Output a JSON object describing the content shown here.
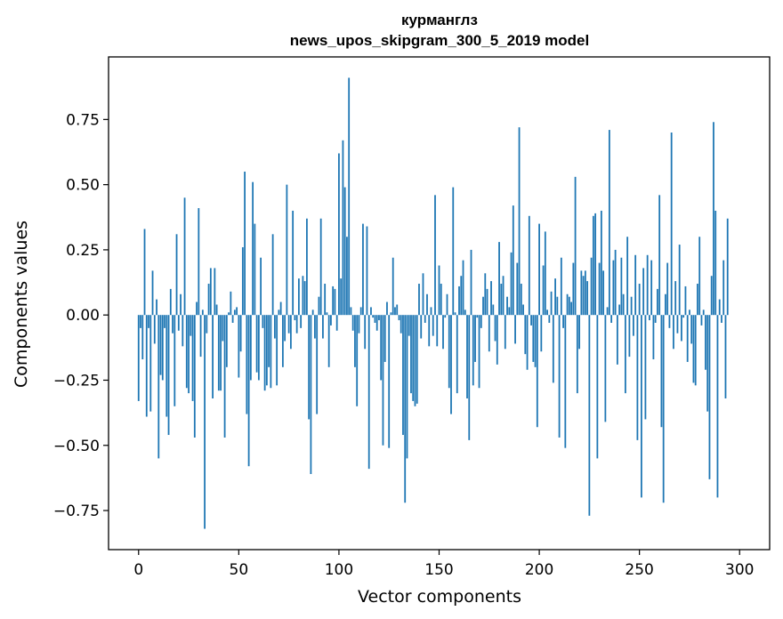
{
  "chart_data": {
    "type": "bar",
    "title_line1": "курманглз",
    "title_line2": "news_upos_skipgram_300_5_2019 model",
    "xlabel": "Vector components",
    "ylabel": "Components values",
    "xlim": [
      -15,
      315
    ],
    "ylim": [
      -0.9,
      0.99
    ],
    "xticks": [
      0,
      50,
      100,
      150,
      200,
      250,
      300
    ],
    "xtick_labels": [
      "0",
      "50",
      "100",
      "150",
      "200",
      "250",
      "300"
    ],
    "yticks": [
      -0.75,
      -0.5,
      -0.25,
      0.0,
      0.25,
      0.5,
      0.75
    ],
    "ytick_labels": [
      "−0.75",
      "−0.50",
      "−0.25",
      "0.00",
      "0.25",
      "0.50",
      "0.75"
    ],
    "bar_color": "#1f77b4",
    "values": [
      -0.33,
      -0.05,
      -0.17,
      0.33,
      -0.39,
      -0.05,
      -0.37,
      0.17,
      -0.11,
      0.06,
      -0.55,
      -0.23,
      -0.25,
      -0.05,
      -0.39,
      -0.46,
      0.1,
      -0.07,
      -0.35,
      0.31,
      -0.06,
      0.08,
      -0.12,
      0.45,
      -0.28,
      -0.3,
      -0.08,
      -0.33,
      -0.47,
      0.05,
      0.41,
      -0.16,
      0.02,
      -0.82,
      -0.07,
      0.12,
      0.18,
      -0.32,
      0.18,
      0.04,
      -0.29,
      -0.29,
      -0.1,
      -0.47,
      -0.2,
      0.01,
      0.09,
      -0.03,
      0.02,
      0.03,
      -0.24,
      -0.14,
      0.26,
      0.55,
      -0.38,
      -0.58,
      -0.25,
      0.51,
      0.35,
      -0.22,
      -0.25,
      0.22,
      -0.05,
      -0.29,
      -0.27,
      -0.2,
      -0.28,
      0.31,
      -0.09,
      -0.27,
      0.02,
      0.05,
      -0.2,
      -0.1,
      0.5,
      -0.07,
      -0.13,
      0.4,
      -0.02,
      -0.07,
      0.14,
      -0.05,
      0.15,
      0.13,
      0.37,
      -0.4,
      -0.61,
      0.02,
      -0.09,
      -0.38,
      0.07,
      0.37,
      -0.09,
      0.12,
      0.01,
      -0.2,
      -0.04,
      0.11,
      0.1,
      -0.06,
      0.62,
      0.14,
      0.67,
      0.49,
      0.3,
      0.91,
      0.03,
      -0.06,
      -0.2,
      -0.35,
      -0.07,
      0.03,
      0.35,
      -0.13,
      0.34,
      -0.59,
      0.03,
      -0.01,
      -0.03,
      -0.06,
      -0.02,
      -0.25,
      -0.5,
      -0.18,
      0.05,
      -0.51,
      0.01,
      0.22,
      0.03,
      0.04,
      -0.02,
      -0.07,
      -0.46,
      -0.72,
      -0.55,
      -0.08,
      -0.3,
      -0.33,
      -0.35,
      -0.34,
      0.12,
      -0.09,
      0.16,
      -0.03,
      0.08,
      -0.12,
      0.03,
      -0.08,
      0.46,
      -0.12,
      0.19,
      0.12,
      -0.13,
      -0.01,
      0.08,
      -0.28,
      -0.38,
      0.49,
      0.01,
      -0.3,
      0.11,
      0.15,
      0.21,
      0.02,
      -0.32,
      -0.48,
      0.25,
      -0.27,
      -0.18,
      -0.01,
      -0.28,
      -0.05,
      0.07,
      0.16,
      0.1,
      -0.14,
      0.13,
      0.04,
      -0.1,
      -0.19,
      0.28,
      0.12,
      0.15,
      -0.13,
      0.07,
      0.03,
      0.24,
      0.42,
      -0.11,
      0.2,
      0.72,
      0.12,
      0.04,
      -0.15,
      -0.21,
      0.38,
      -0.04,
      -0.18,
      -0.2,
      -0.43,
      0.35,
      -0.14,
      0.19,
      0.32,
      0.02,
      -0.03,
      0.09,
      -0.26,
      0.14,
      0.07,
      -0.47,
      0.22,
      -0.05,
      -0.51,
      0.08,
      0.07,
      0.05,
      0.2,
      0.53,
      -0.3,
      -0.13,
      0.17,
      0.15,
      0.17,
      0.13,
      -0.77,
      0.22,
      0.38,
      0.39,
      -0.55,
      0.2,
      0.4,
      0.17,
      -0.41,
      0.03,
      0.71,
      -0.03,
      0.21,
      0.25,
      -0.19,
      0.04,
      0.22,
      0.08,
      -0.3,
      0.3,
      -0.16,
      0.07,
      -0.08,
      0.23,
      -0.48,
      0.12,
      -0.7,
      0.18,
      -0.4,
      0.23,
      -0.02,
      0.21,
      -0.17,
      -0.03,
      0.1,
      0.46,
      -0.43,
      -0.72,
      0.08,
      0.2,
      -0.05,
      0.7,
      -0.13,
      0.13,
      -0.07,
      0.27,
      -0.1,
      -0.01,
      0.11,
      -0.18,
      0.02,
      -0.11,
      -0.26,
      -0.27,
      0.12,
      0.3,
      -0.04,
      0.02,
      -0.21,
      -0.37,
      -0.63,
      0.15,
      0.74,
      0.4,
      -0.7,
      0.06,
      -0.03,
      0.21,
      -0.32,
      0.37
    ]
  }
}
